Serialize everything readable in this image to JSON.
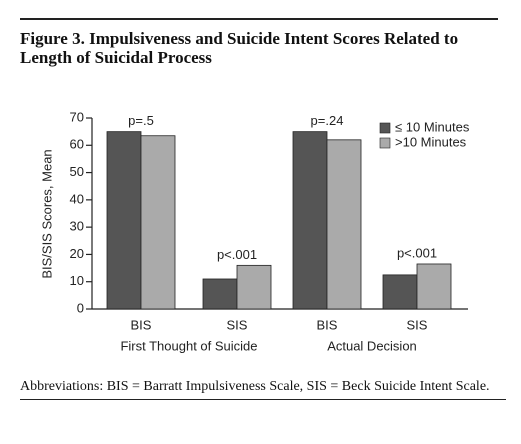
{
  "chart_data": {
    "type": "bar",
    "title": "Figure 3. Impulsiveness and Suicide Intent Scores Related to Length of Suicidal Process",
    "y_label": "BIS/SIS Scores, Mean",
    "categories": [
      "BIS",
      "SIS",
      "BIS",
      "SIS"
    ],
    "groups": [
      "First Thought of Suicide",
      "Actual Decision"
    ],
    "annotations": [
      "p=.5",
      "p<.001",
      "p=.24",
      "p<.001"
    ],
    "series": [
      {
        "name": "≤ 10 Minutes",
        "color": "#555555",
        "values": [
          65,
          11,
          65,
          12.5
        ]
      },
      {
        "name": ">10 Minutes",
        "color": "#aaaaaa",
        "values": [
          63.5,
          16,
          62,
          16.5
        ]
      }
    ],
    "ylim": [
      0,
      70
    ],
    "yticks": [
      0,
      10,
      20,
      30,
      40,
      50,
      60,
      70
    ],
    "legend": "upper right",
    "footnote": "Abbreviations: BIS = Barratt Impulsiveness Scale, SIS = Beck Suicide Intent Scale."
  }
}
